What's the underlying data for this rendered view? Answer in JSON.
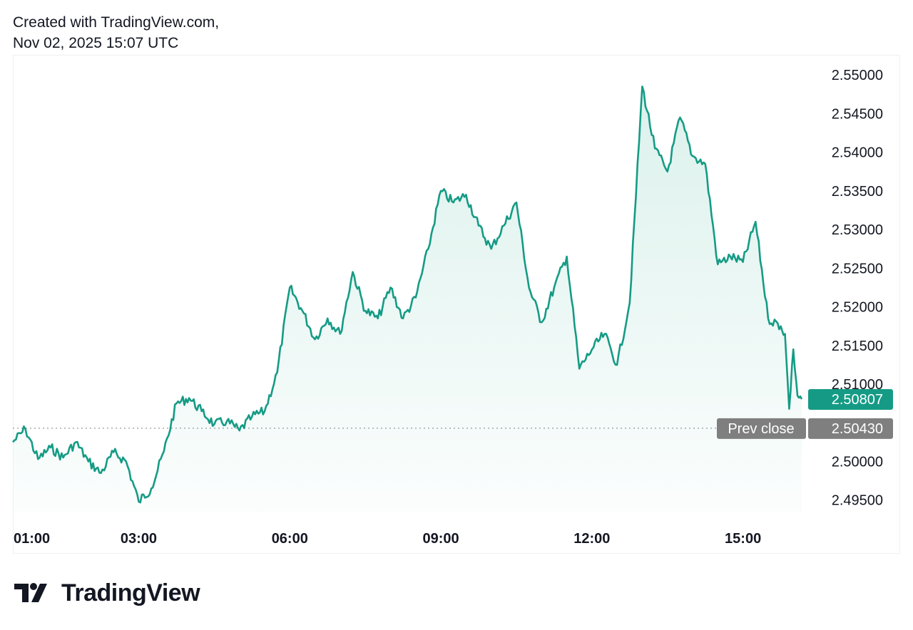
{
  "header": {
    "line1": "Created with TradingView.com,",
    "line2": "Nov 02, 2025 15:07 UTC"
  },
  "brand": {
    "name": "TradingView",
    "icon": "tradingview-logo-icon"
  },
  "colors": {
    "line": "#159b85",
    "fill": "#d6efe9",
    "last_price_tag": "#159b85",
    "prev_close_tag": "#7f7f7f"
  },
  "chart_data": {
    "type": "area",
    "y_axis_ticks": [
      "2.55000",
      "2.54500",
      "2.54000",
      "2.53500",
      "2.53000",
      "2.52500",
      "2.52000",
      "2.51500",
      "2.51000",
      "2.50000",
      "2.49500"
    ],
    "x_axis_ticks": [
      "01:00",
      "03:00",
      "06:00",
      "09:00",
      "12:00",
      "15:00"
    ],
    "ylim": [
      2.4935,
      2.5525
    ],
    "y_axis_side": "right",
    "grid": false,
    "last_price": "2.50807",
    "prev_close_label": "Prev close",
    "prev_close": "2.50430",
    "series": [
      {
        "x": [
          "00:30",
          "00:45",
          "01:00",
          "01:15",
          "01:30",
          "01:45",
          "02:00",
          "02:15",
          "02:30",
          "02:45",
          "03:00",
          "03:15",
          "03:30",
          "03:45",
          "04:00",
          "04:15",
          "04:30",
          "04:45",
          "05:00",
          "05:15",
          "05:30",
          "05:45",
          "06:00",
          "06:15",
          "06:30",
          "06:45",
          "07:00",
          "07:15",
          "07:30",
          "07:45",
          "08:00",
          "08:15",
          "08:30",
          "08:45",
          "09:00",
          "09:15",
          "09:30",
          "09:45",
          "10:00",
          "10:15",
          "10:30",
          "10:45",
          "11:00",
          "11:15",
          "11:30",
          "11:45",
          "12:00",
          "12:15",
          "12:30",
          "12:45",
          "13:00",
          "13:15",
          "13:30",
          "13:45",
          "14:00",
          "14:15",
          "14:30",
          "14:45",
          "15:00",
          "15:15",
          "15:30",
          "15:45",
          "15:50",
          "15:55",
          "16:00",
          "16:05",
          "16:10"
        ],
        "values": [
          2.5025,
          2.5042,
          2.5003,
          2.5018,
          2.5005,
          2.5025,
          2.5,
          2.4985,
          2.5012,
          2.5,
          2.4948,
          2.4965,
          2.5013,
          2.5075,
          2.5082,
          2.5065,
          2.5048,
          2.5052,
          2.504,
          2.5058,
          2.5065,
          2.5115,
          2.5225,
          2.5195,
          2.5158,
          2.5185,
          2.5165,
          2.5245,
          2.5195,
          2.5185,
          2.5225,
          2.5185,
          2.5212,
          2.5275,
          2.535,
          2.5335,
          2.5345,
          2.5305,
          2.5275,
          2.5305,
          2.5335,
          2.5225,
          2.518,
          2.5225,
          2.5265,
          2.512,
          2.5145,
          2.5165,
          2.5125,
          2.5205,
          2.5485,
          2.5405,
          2.5375,
          2.5445,
          2.5395,
          2.5385,
          2.5255,
          2.5265,
          2.5258,
          2.531,
          2.5185,
          2.5175,
          2.5165,
          2.5068,
          2.5145,
          2.5085,
          2.50807
        ]
      }
    ]
  }
}
